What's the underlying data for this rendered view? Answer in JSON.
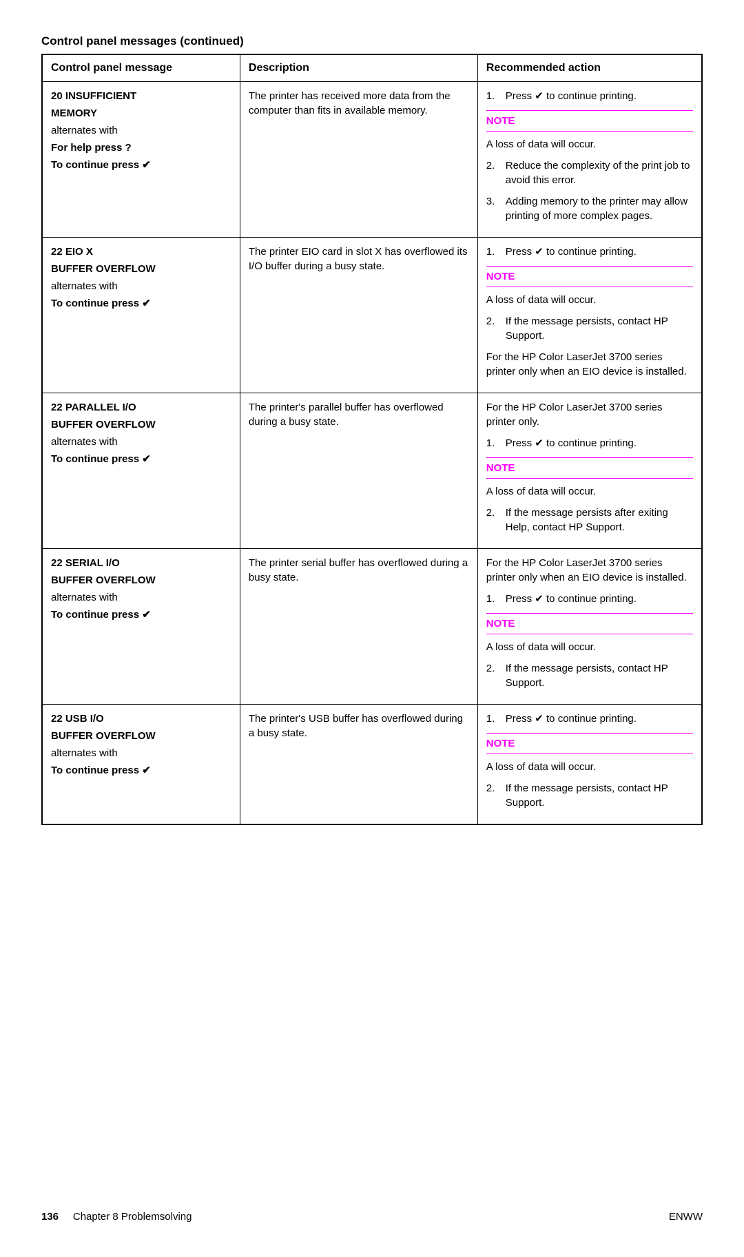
{
  "title": "Control panel messages (continued)",
  "headers": {
    "col1": "Control panel message",
    "col2": "Description",
    "col3": "Recommended action"
  },
  "rows": [
    {
      "msg": [
        {
          "t": "20 INSUFFICIENT",
          "b": true
        },
        {
          "t": "MEMORY",
          "b": true
        },
        {
          "t": "alternates with",
          "b": false
        },
        {
          "t": "For help press ?",
          "b": true
        },
        {
          "t": "To continue press ✔",
          "b": true
        }
      ],
      "desc": "The printer has received more data from the computer than fits in available memory.",
      "action": {
        "pre_items": [
          {
            "n": "1.",
            "t": "Press ✔ to continue printing."
          }
        ],
        "note": "NOTE",
        "post_note_text": "A loss of data will occur.",
        "post_items": [
          {
            "n": "2.",
            "t": "Reduce the complexity of the print job to avoid this error."
          },
          {
            "n": "3.",
            "t": "Adding memory to the printer may allow printing of more complex pages."
          }
        ]
      }
    },
    {
      "msg": [
        {
          "t": "22 EIO X",
          "b": true
        },
        {
          "t": "BUFFER OVERFLOW",
          "b": true
        },
        {
          "t": "alternates with",
          "b": false
        },
        {
          "t": "To continue press ✔",
          "b": true
        }
      ],
      "desc": "The printer EIO card in slot X has overflowed its I/O buffer during a busy state.",
      "action": {
        "pre_items": [
          {
            "n": "1.",
            "t": "Press ✔ to continue printing."
          }
        ],
        "note": "NOTE",
        "post_note_text": "A loss of data will occur.",
        "post_items": [
          {
            "n": "2.",
            "t": "If the message persists, contact HP Support."
          }
        ],
        "trailing_text": "For the HP Color LaserJet 3700 series printer only when an EIO device is installed."
      }
    },
    {
      "msg": [
        {
          "t": "22 PARALLEL I/O",
          "b": true
        },
        {
          "t": "BUFFER OVERFLOW",
          "b": true
        },
        {
          "t": "alternates with",
          "b": false
        },
        {
          "t": "To continue press ✔",
          "b": true
        }
      ],
      "desc": "The printer's parallel buffer has overflowed during a busy state.",
      "action": {
        "leading_text": "For the HP Color LaserJet 3700 series printer only.",
        "pre_items": [
          {
            "n": "1.",
            "t": "Press ✔ to continue printing."
          }
        ],
        "note": "NOTE",
        "post_note_text": "A loss of data will occur.",
        "post_items": [
          {
            "n": "2.",
            "t": "If the message persists after exiting Help, contact HP Support."
          }
        ]
      }
    },
    {
      "msg": [
        {
          "t": "22 SERIAL I/O",
          "b": true
        },
        {
          "t": "BUFFER OVERFLOW",
          "b": true
        },
        {
          "t": "alternates with",
          "b": false
        },
        {
          "t": "To continue press ✔",
          "b": true
        }
      ],
      "desc": "The printer serial buffer has overflowed during a busy state.",
      "action": {
        "leading_text": "For the HP Color LaserJet 3700 series printer only when an EIO device is installed.",
        "pre_items": [
          {
            "n": "1.",
            "t": "Press ✔ to continue printing."
          }
        ],
        "note": "NOTE",
        "post_note_text": "A loss of data will occur.",
        "post_items": [
          {
            "n": "2.",
            "t": "If the message persists, contact HP Support."
          }
        ]
      }
    },
    {
      "msg": [
        {
          "t": "22 USB I/O",
          "b": true
        },
        {
          "t": "BUFFER OVERFLOW",
          "b": true
        },
        {
          "t": "alternates with",
          "b": false
        },
        {
          "t": "To continue press ✔",
          "b": true
        }
      ],
      "desc": "The printer's USB buffer has overflowed during a busy state.",
      "action": {
        "pre_items": [
          {
            "n": "1.",
            "t": "Press ✔ to continue printing."
          }
        ],
        "note": "NOTE",
        "post_note_text": "A loss of data will occur.",
        "post_items": [
          {
            "n": "2.",
            "t": "If the message persists, contact HP Support."
          }
        ]
      }
    }
  ],
  "footer": {
    "page_num": "136",
    "chapter": "Chapter 8   Problemsolving",
    "right": "ENWW"
  }
}
